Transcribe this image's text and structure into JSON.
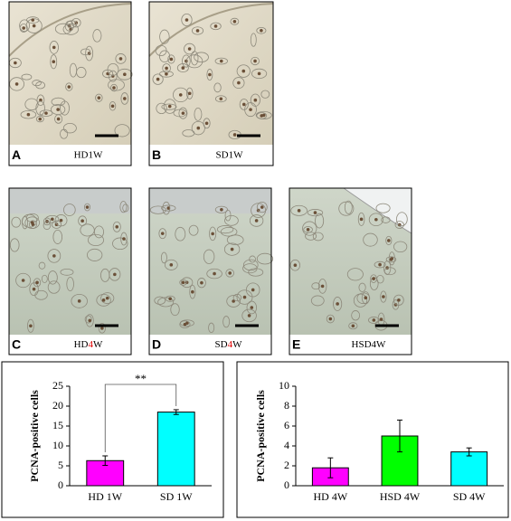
{
  "panels": [
    {
      "label": "A",
      "caption_parts": [
        "HD1W"
      ]
    },
    {
      "label": "B",
      "caption_parts": [
        "SD1W"
      ]
    },
    {
      "label": "C",
      "caption_parts": [
        "HD",
        "4",
        "W"
      ]
    },
    {
      "label": "D",
      "caption_parts": [
        "SD",
        "4",
        "W"
      ]
    },
    {
      "label": "E",
      "caption_parts": [
        "HSD4W"
      ]
    }
  ],
  "chart_data": [
    {
      "type": "bar",
      "ylabel": "PCNA-positive cells",
      "categories": [
        "HD 1W",
        "SD 1W"
      ],
      "values": [
        6.3,
        18.5
      ],
      "errors": [
        1.2,
        0.6
      ],
      "colors": [
        "#ff00ff",
        "#00ffff"
      ],
      "ylim": [
        0,
        25
      ],
      "yticks": [
        0,
        5,
        10,
        15,
        20,
        25
      ],
      "annotation": "**"
    },
    {
      "type": "bar",
      "ylabel": "PCNA-positive cells",
      "categories": [
        "HD 4W",
        "HSD 4W",
        "SD 4W"
      ],
      "values": [
        1.8,
        5.0,
        3.4
      ],
      "errors": [
        1.0,
        1.6,
        0.4
      ],
      "colors": [
        "#ff00ff",
        "#00ff00",
        "#00ffff"
      ],
      "ylim": [
        0,
        10
      ],
      "yticks": [
        0,
        2,
        4,
        6,
        8,
        10
      ]
    }
  ]
}
